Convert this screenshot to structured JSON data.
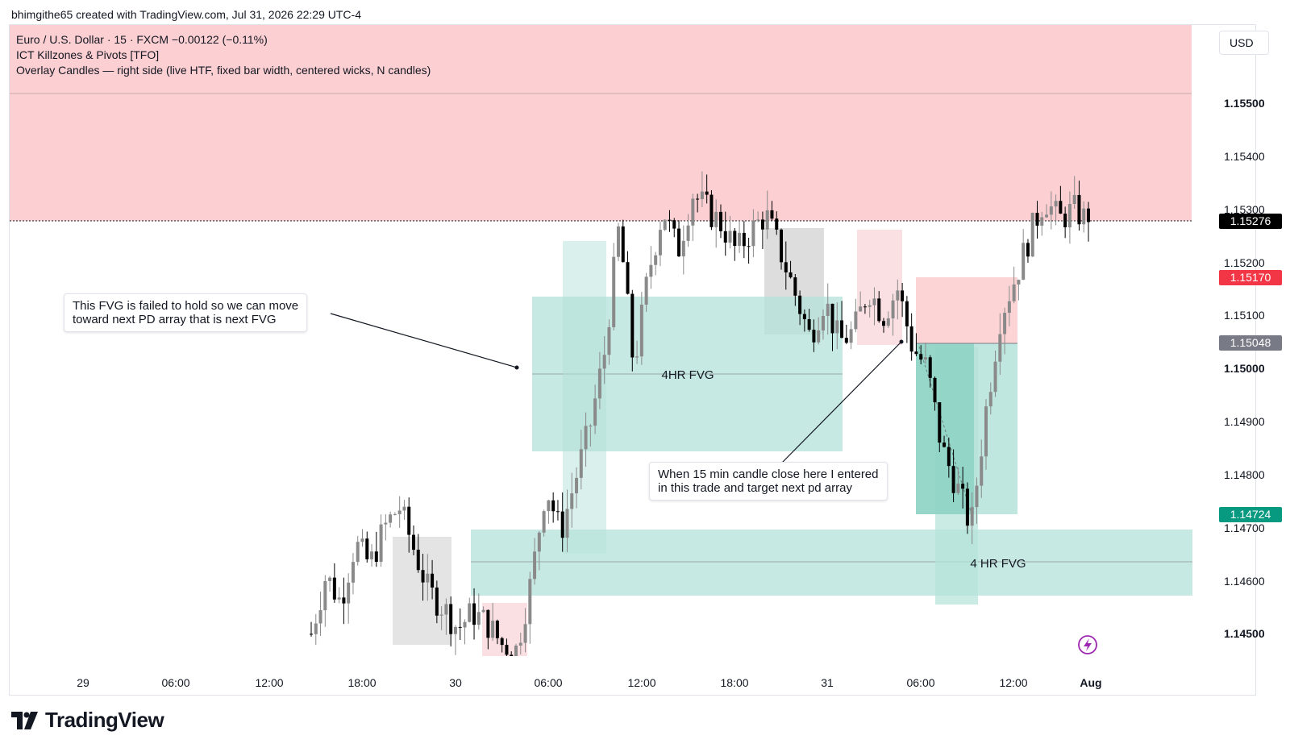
{
  "header": {
    "attribution": "bhimgithe65 created with TradingView.com, Jul 31, 2026 22:29 UTC-4"
  },
  "legend": {
    "line1": "Euro / U.S. Dollar · 15 · FXCM  −0.00122 (−0.11%)",
    "line2": "ICT Killzones & Pivots [TFO]",
    "line3": "Overlay Candles — right side (live HTF, fixed bar width, centered wicks, N candles)"
  },
  "currency_button": "USD",
  "price_axis": {
    "labels": [
      "1.15500",
      "1.15400",
      "1.15300",
      "1.15200",
      "1.15100",
      "1.15000",
      "1.14900",
      "1.14800",
      "1.14700",
      "1.14600",
      "1.14500"
    ],
    "bold_labels": [
      "1.15500",
      "1.15000",
      "1.14500"
    ],
    "tags": [
      {
        "value": "1.15276",
        "color": "#000000"
      },
      {
        "value": "1.15170",
        "color": "#f23645"
      },
      {
        "value": "1.15048",
        "color": "#787b86"
      },
      {
        "value": "1.14724",
        "color": "#089981"
      }
    ]
  },
  "time_axis": {
    "labels": [
      "29",
      "06:00",
      "12:00",
      "18:00",
      "30",
      "06:00",
      "12:00",
      "18:00",
      "31",
      "06:00",
      "12:00",
      "Aug"
    ]
  },
  "zones": {
    "fvg_upper_label": "4HR FVG",
    "fvg_lower_label": "4 HR FVG"
  },
  "notes": {
    "fvg_failed": [
      "This FVG is failed to hold  so we can move",
      "toward next PD array that is next FVG"
    ],
    "entry": [
      "When 15 min candle close here  I entered",
      "in this trade  and target next pd array"
    ]
  },
  "brand": {
    "name": "TradingView"
  },
  "colors": {
    "premium_zone": "#fccfd2",
    "fvg": "#b4e2d9",
    "grey_box": "#d9d9d9",
    "pink_box": "#fbe0e3",
    "up_candle": "#8a8a8a",
    "down_candle": "#000000"
  },
  "chart_data": {
    "type": "candlestick",
    "symbol": "Euro / U.S. Dollar",
    "interval": "15",
    "ylim": [
      1.1445,
      1.1559
    ],
    "current_price": 1.15276,
    "key_levels": [
      1.15276,
      1.1517,
      1.15048,
      1.14724
    ],
    "price_path": [
      [
        0,
        1.145
      ],
      [
        1,
        1.1461
      ],
      [
        2,
        1.1456
      ],
      [
        3,
        1.1467
      ],
      [
        4,
        1.1463
      ],
      [
        5,
        1.147
      ],
      [
        6,
        1.1474
      ],
      [
        7,
        1.1466
      ],
      [
        8,
        1.1458
      ],
      [
        9,
        1.1455
      ],
      [
        10,
        1.1451
      ],
      [
        11,
        1.1454
      ],
      [
        12,
        1.1452
      ],
      [
        13,
        1.1448
      ],
      [
        14,
        1.1447
      ],
      [
        15,
        1.146
      ],
      [
        16,
        1.1478
      ],
      [
        17,
        1.1469
      ],
      [
        18,
        1.1479
      ],
      [
        19,
        1.1489
      ],
      [
        20,
        1.1503
      ],
      [
        21,
        1.1527
      ],
      [
        22,
        1.15
      ],
      [
        23,
        1.1518
      ],
      [
        24,
        1.153
      ],
      [
        25,
        1.1522
      ],
      [
        26,
        1.1533
      ],
      [
        27,
        1.153
      ],
      [
        28,
        1.1527
      ],
      [
        29,
        1.1522
      ],
      [
        30,
        1.1526
      ],
      [
        31,
        1.1529
      ],
      [
        32,
        1.1522
      ],
      [
        33,
        1.1514
      ],
      [
        34,
        1.1506
      ],
      [
        35,
        1.1513
      ],
      [
        36,
        1.1505
      ],
      [
        37,
        1.1507
      ],
      [
        38,
        1.1515
      ],
      [
        39,
        1.151
      ],
      [
        40,
        1.1515
      ],
      [
        41,
        1.1504
      ],
      [
        42,
        1.15
      ],
      [
        43,
        1.1485
      ],
      [
        44,
        1.1478
      ],
      [
        45,
        1.147
      ],
      [
        46,
        1.1492
      ],
      [
        47,
        1.151
      ],
      [
        48,
        1.1517
      ],
      [
        49,
        1.1525
      ],
      [
        50,
        1.1532
      ],
      [
        51,
        1.1528
      ],
      [
        52,
        1.153
      ],
      [
        53,
        1.15276
      ]
    ]
  }
}
